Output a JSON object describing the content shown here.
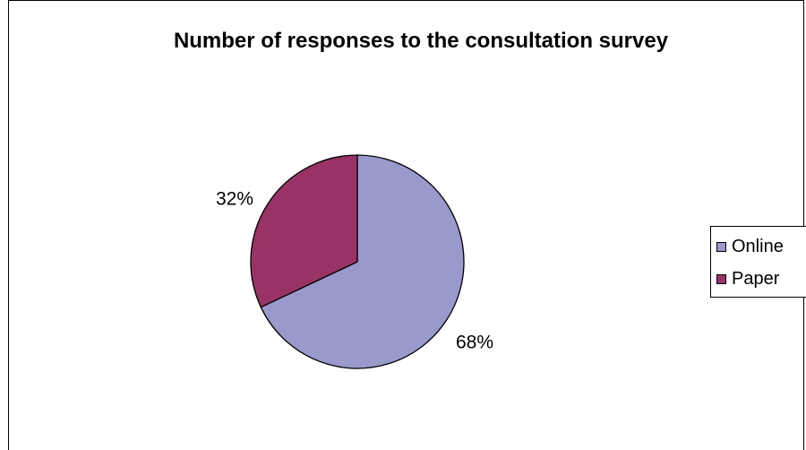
{
  "chart_data": {
    "type": "pie",
    "title": "Number of responses to the consultation survey",
    "slices": [
      {
        "name": "Online",
        "value": 68,
        "label": "68%",
        "color": "#9999CC"
      },
      {
        "name": "Paper",
        "value": 32,
        "label": "32%",
        "color": "#993366"
      }
    ],
    "legend_placement": "right"
  }
}
